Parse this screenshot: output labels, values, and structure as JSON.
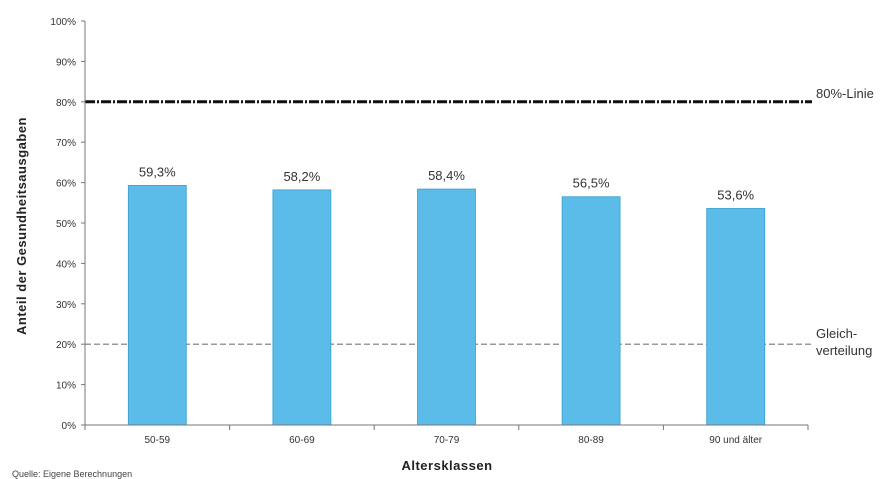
{
  "chart_data": {
    "type": "bar",
    "categories": [
      "50-59",
      "60-69",
      "70-79",
      "80-89",
      "90 und älter"
    ],
    "values": [
      59.3,
      58.2,
      58.4,
      56.5,
      53.6
    ],
    "data_labels": [
      "59,3%",
      "58,2%",
      "58,4%",
      "56,5%",
      "53,6%"
    ],
    "xlabel": "Altersklassen",
    "ylabel": "Anteil der Gesundheitsausgaben",
    "ylim": [
      0,
      100
    ],
    "yticks": [
      0,
      10,
      20,
      30,
      40,
      50,
      60,
      70,
      80,
      90,
      100
    ],
    "ytick_labels": [
      "0%",
      "10%",
      "20%",
      "30%",
      "40%",
      "50%",
      "60%",
      "70%",
      "80%",
      "90%",
      "100%"
    ],
    "bar_color": "#5bbbe9",
    "grid": false,
    "reference_lines": [
      {
        "value": 80,
        "label": "80%-Linie",
        "style": "dash-dot-bold",
        "color": "#111111"
      },
      {
        "value": 20,
        "label_lines": [
          "Gleich-",
          "verteilung"
        ],
        "style": "dashed",
        "color": "#999999"
      }
    ],
    "source_note": "Quelle: Eigene Berechnungen"
  }
}
